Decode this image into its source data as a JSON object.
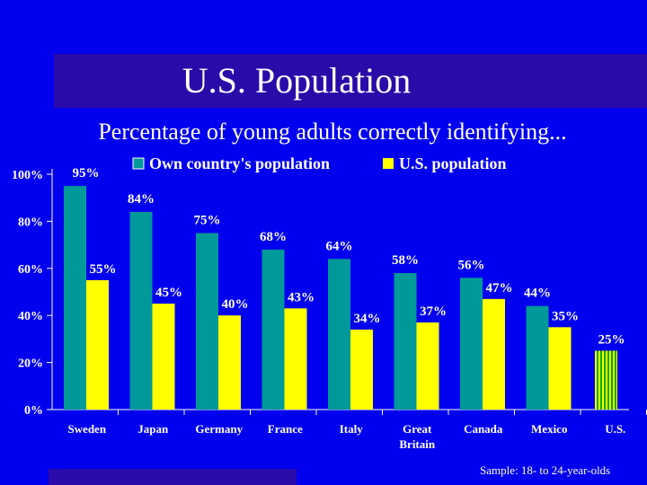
{
  "slide": {
    "title": "U.S. Population",
    "subtitle": "Percentage of young adults correctly identifying...",
    "footnote": "Sample: 18- to 24-year-olds"
  },
  "colors": {
    "background": "#0000ee",
    "band": "#2a0aa8",
    "own": "#009999",
    "us": "#ffff00",
    "us_stripe": "#00aa00"
  },
  "chart_data": {
    "type": "bar",
    "title": "Percentage of young adults correctly identifying...",
    "xlabel": "",
    "ylabel": "",
    "ylim": [
      0,
      100
    ],
    "yticks": [
      "0%",
      "20%",
      "40%",
      "60%",
      "80%",
      "100%"
    ],
    "legend_position": "top",
    "categories": [
      [
        "Sweden"
      ],
      [
        "Japan"
      ],
      [
        "Germany"
      ],
      [
        "France"
      ],
      [
        "Italy"
      ],
      [
        "Great",
        "Britain"
      ],
      [
        "Canada"
      ],
      [
        "Mexico"
      ],
      [
        "U.S."
      ]
    ],
    "series": [
      {
        "name": "Own country's population",
        "values": [
          95,
          84,
          75,
          68,
          64,
          58,
          56,
          44,
          null
        ],
        "labels": [
          "95%",
          "84%",
          "75%",
          "68%",
          "64%",
          "58%",
          "56%",
          "44%",
          null
        ]
      },
      {
        "name": "U.S. population",
        "values": [
          55,
          45,
          40,
          43,
          34,
          37,
          47,
          35,
          25
        ],
        "labels": [
          "55%",
          "45%",
          "40%",
          "43%",
          "34%",
          "37%",
          "47%",
          "35%",
          "25%"
        ]
      }
    ]
  }
}
